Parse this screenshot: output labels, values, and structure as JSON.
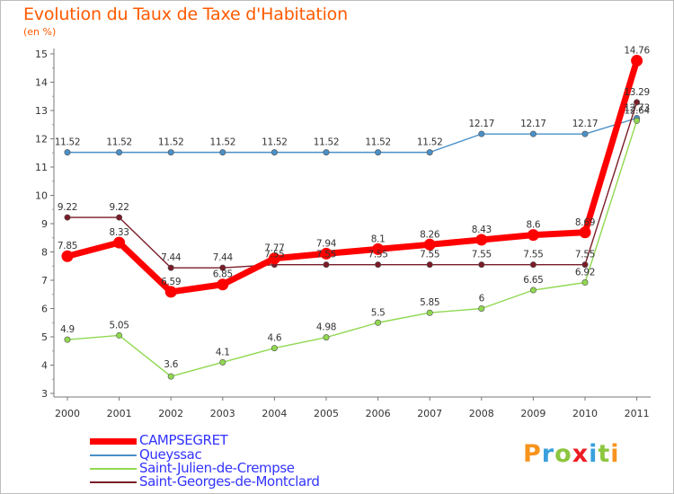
{
  "title": "Evolution du Taux de Taxe d'Habitation",
  "subtitle": "(en %)",
  "logo": {
    "text": "Proxiti",
    "colors": [
      "#f7941d",
      "#3aa0dc",
      "#8dc63f",
      "#ed1c24",
      "#3aa0dc",
      "#8dc63f",
      "#f7941d"
    ]
  },
  "chart_data": {
    "type": "line",
    "title": "Evolution du Taux de Taxe d'Habitation",
    "ylabel": "(en %)",
    "xlabel": "",
    "x": [
      "2000",
      "2001",
      "2002",
      "2003",
      "2004",
      "2005",
      "2006",
      "2007",
      "2008",
      "2009",
      "2010",
      "2011"
    ],
    "ylim": [
      3,
      15
    ],
    "yticks": [
      "3",
      "4",
      "5",
      "6",
      "7",
      "8",
      "9",
      "10",
      "11",
      "12",
      "13",
      "14",
      "15"
    ],
    "grid": false,
    "legend_position": "bottom-left",
    "series": [
      {
        "name": "CAMPSEGRET",
        "color": "#ff0000",
        "values": [
          7.85,
          8.33,
          6.59,
          6.85,
          7.77,
          7.94,
          8.1,
          8.26,
          8.43,
          8.6,
          8.69,
          14.76
        ],
        "labels": [
          "7.85",
          "8.33",
          "6.59",
          "6.85",
          "7.77",
          "7.94",
          "8.1",
          "8.26",
          "8.43",
          "8.6",
          "8.69",
          "14.76"
        ]
      },
      {
        "name": "Queyssac",
        "color": "#4a90c8",
        "values": [
          11.52,
          11.52,
          11.52,
          11.52,
          11.52,
          11.52,
          11.52,
          11.52,
          12.17,
          12.17,
          12.17,
          12.73
        ],
        "labels": [
          "11.52",
          "11.52",
          "11.52",
          "11.52",
          "11.52",
          "11.52",
          "11.52",
          "11.52",
          "12.17",
          "12.17",
          "12.17",
          "12.73"
        ]
      },
      {
        "name": "Saint-Julien-de-Crempse",
        "color": "#90d850",
        "values": [
          4.9,
          5.05,
          3.6,
          4.1,
          4.6,
          4.98,
          5.5,
          5.85,
          6.0,
          6.65,
          6.92,
          12.64
        ],
        "labels": [
          "4.9",
          "5.05",
          "3.6",
          "4.1",
          "4.6",
          "4.98",
          "5.5",
          "5.85",
          "6",
          "6.65",
          "6.92",
          "12.64"
        ]
      },
      {
        "name": "Saint-Georges-de-Montclard",
        "color": "#7a1c28",
        "values": [
          9.22,
          9.22,
          7.44,
          7.44,
          7.55,
          7.55,
          7.55,
          7.55,
          7.55,
          7.55,
          7.55,
          13.29
        ],
        "labels": [
          "9.22",
          "9.22",
          "7.44",
          "7.44",
          "7.55",
          "7.55",
          "7.55",
          "7.55",
          "7.55",
          "7.55",
          "7.55",
          "13.29"
        ]
      }
    ]
  }
}
